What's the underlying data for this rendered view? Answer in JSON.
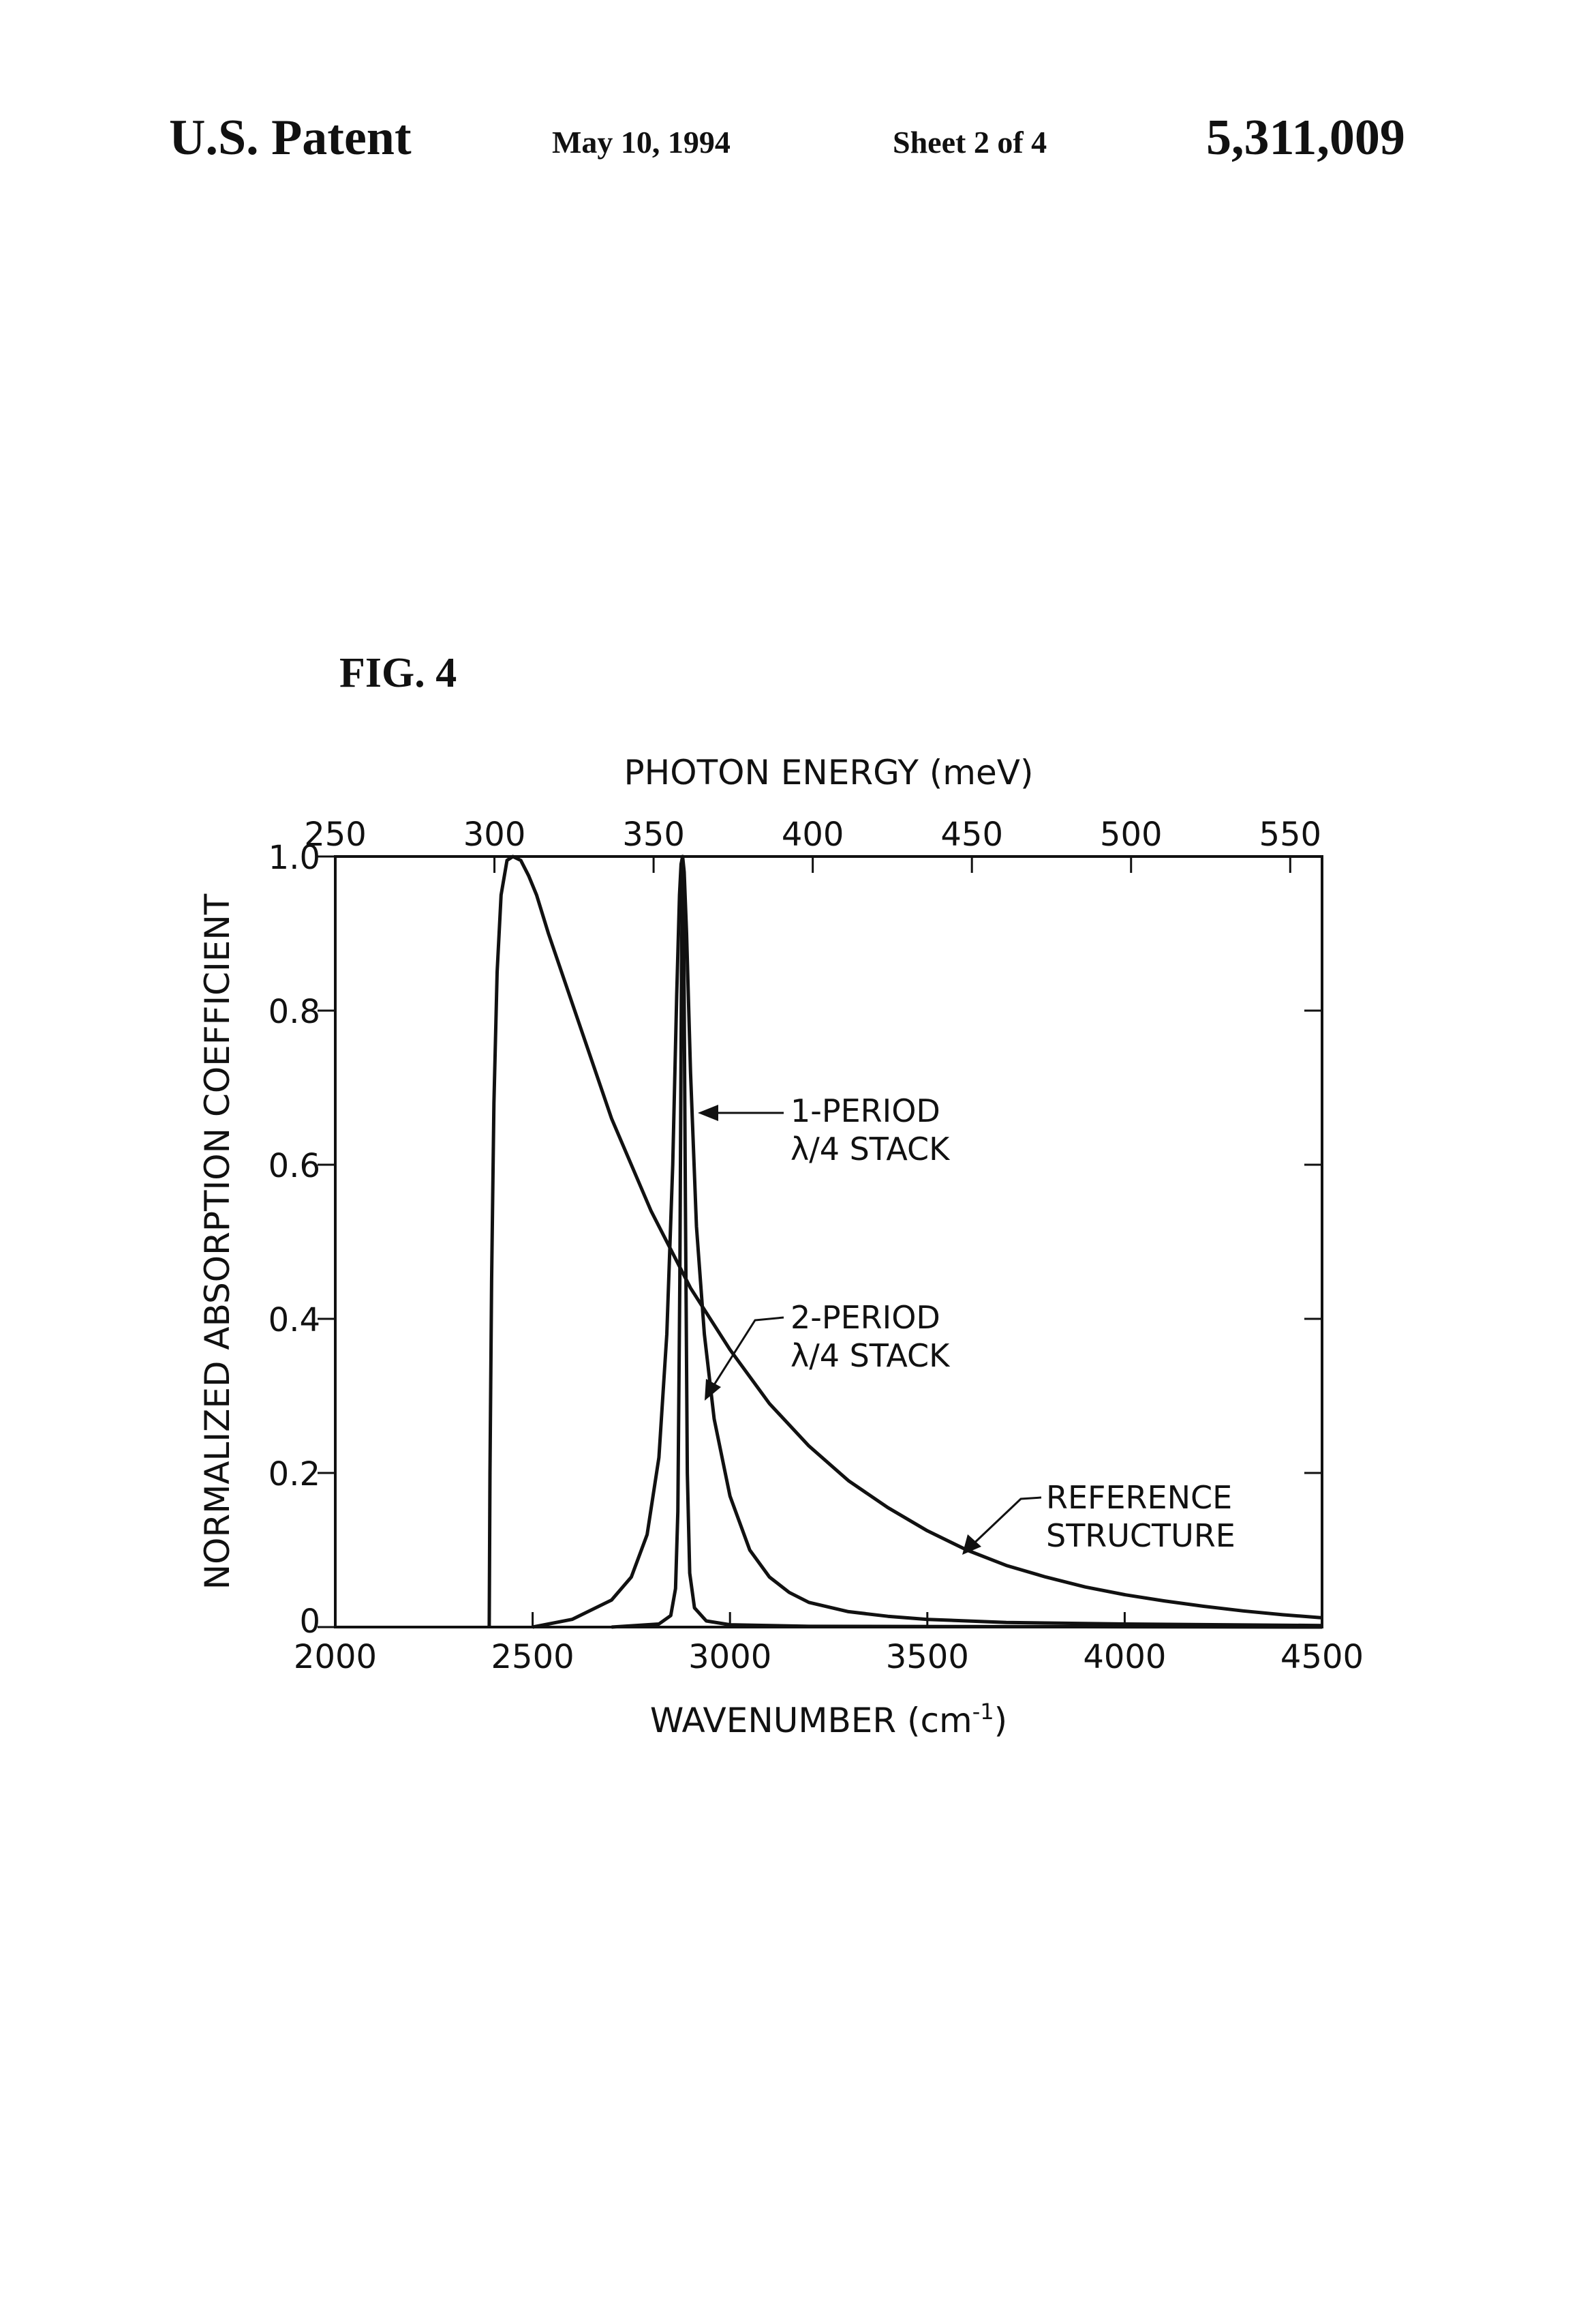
{
  "header": {
    "patent_label": "U.S. Patent",
    "date": "May 10, 1994",
    "sheet": "Sheet 2 of 4",
    "patent_number": "5,311,009"
  },
  "figure": {
    "label": "FIG. 4"
  },
  "chart_data": {
    "type": "line",
    "xlabel": "WAVENUMBER (cm-1)",
    "xlabel_base": "WAVENUMBER (cm",
    "xlabel_sup": "-1",
    "xlabel_close": ")",
    "ylabel": "NORMALIZED ABSORPTION COEFFICIENT",
    "top_xlabel": "PHOTON ENERGY (meV)",
    "xlim": [
      2000,
      4500
    ],
    "ylim": [
      0,
      1.0
    ],
    "top_xlim": [
      250,
      560
    ],
    "x_ticks": [
      2000,
      2500,
      3000,
      3500,
      4000,
      4500
    ],
    "x_tick_labels": [
      "2000",
      "2500",
      "3000",
      "3500",
      "4000",
      "4500"
    ],
    "y_ticks": [
      0,
      0.2,
      0.4,
      0.6,
      0.8,
      1.0
    ],
    "y_tick_labels": [
      "0",
      "0.2",
      "0.4",
      "0.6",
      "0.8",
      "1.0"
    ],
    "top_ticks": [
      250,
      300,
      350,
      400,
      450,
      500,
      550
    ],
    "top_tick_labels": [
      "250",
      "300",
      "350",
      "400",
      "450",
      "500",
      "550"
    ],
    "grid": false,
    "series": [
      {
        "name": "REFERENCE STRUCTURE",
        "x": [
          2390,
          2392,
          2396,
          2402,
          2410,
          2420,
          2435,
          2450,
          2470,
          2490,
          2510,
          2540,
          2600,
          2700,
          2800,
          2900,
          3000,
          3100,
          3200,
          3300,
          3400,
          3500,
          3600,
          3700,
          3800,
          3900,
          4000,
          4100,
          4200,
          4300,
          4400,
          4500
        ],
        "y": [
          0.0,
          0.2,
          0.45,
          0.68,
          0.85,
          0.95,
          0.995,
          1.0,
          0.995,
          0.975,
          0.95,
          0.9,
          0.81,
          0.66,
          0.54,
          0.44,
          0.36,
          0.29,
          0.235,
          0.19,
          0.155,
          0.125,
          0.1,
          0.08,
          0.065,
          0.052,
          0.042,
          0.034,
          0.027,
          0.021,
          0.016,
          0.012
        ]
      },
      {
        "name": "1-PERIOD λ/4 STACK",
        "x": [
          2500,
          2600,
          2700,
          2750,
          2790,
          2820,
          2840,
          2855,
          2865,
          2872,
          2876,
          2880,
          2884,
          2890,
          2900,
          2915,
          2935,
          2960,
          3000,
          3050,
          3100,
          3150,
          3200,
          3300,
          3400,
          3500,
          3700,
          4000,
          4500
        ],
        "y": [
          0.0,
          0.01,
          0.035,
          0.065,
          0.12,
          0.22,
          0.38,
          0.6,
          0.82,
          0.95,
          0.99,
          1.0,
          0.98,
          0.9,
          0.72,
          0.52,
          0.38,
          0.27,
          0.17,
          0.1,
          0.065,
          0.045,
          0.032,
          0.02,
          0.014,
          0.01,
          0.006,
          0.004,
          0.002
        ]
      },
      {
        "name": "2-PERIOD λ/4 STACK",
        "x": [
          2700,
          2820,
          2850,
          2862,
          2868,
          2873,
          2877,
          2880,
          2883,
          2887,
          2892,
          2898,
          2910,
          2940,
          3000,
          3200,
          4500
        ],
        "y": [
          0.0,
          0.004,
          0.015,
          0.05,
          0.15,
          0.45,
          0.85,
          1.0,
          0.9,
          0.55,
          0.2,
          0.07,
          0.025,
          0.008,
          0.003,
          0.001,
          0.0
        ]
      }
    ],
    "annotations": [
      {
        "target": "1-PERIOD λ/4 STACK",
        "lines": [
          "1-PERIOD",
          "λ/4 STACK"
        ]
      },
      {
        "target": "2-PERIOD λ/4 STACK",
        "lines": [
          "2-PERIOD",
          "λ/4 STACK"
        ]
      },
      {
        "target": "REFERENCE STRUCTURE",
        "lines": [
          "REFERENCE",
          "STRUCTURE"
        ]
      }
    ]
  }
}
